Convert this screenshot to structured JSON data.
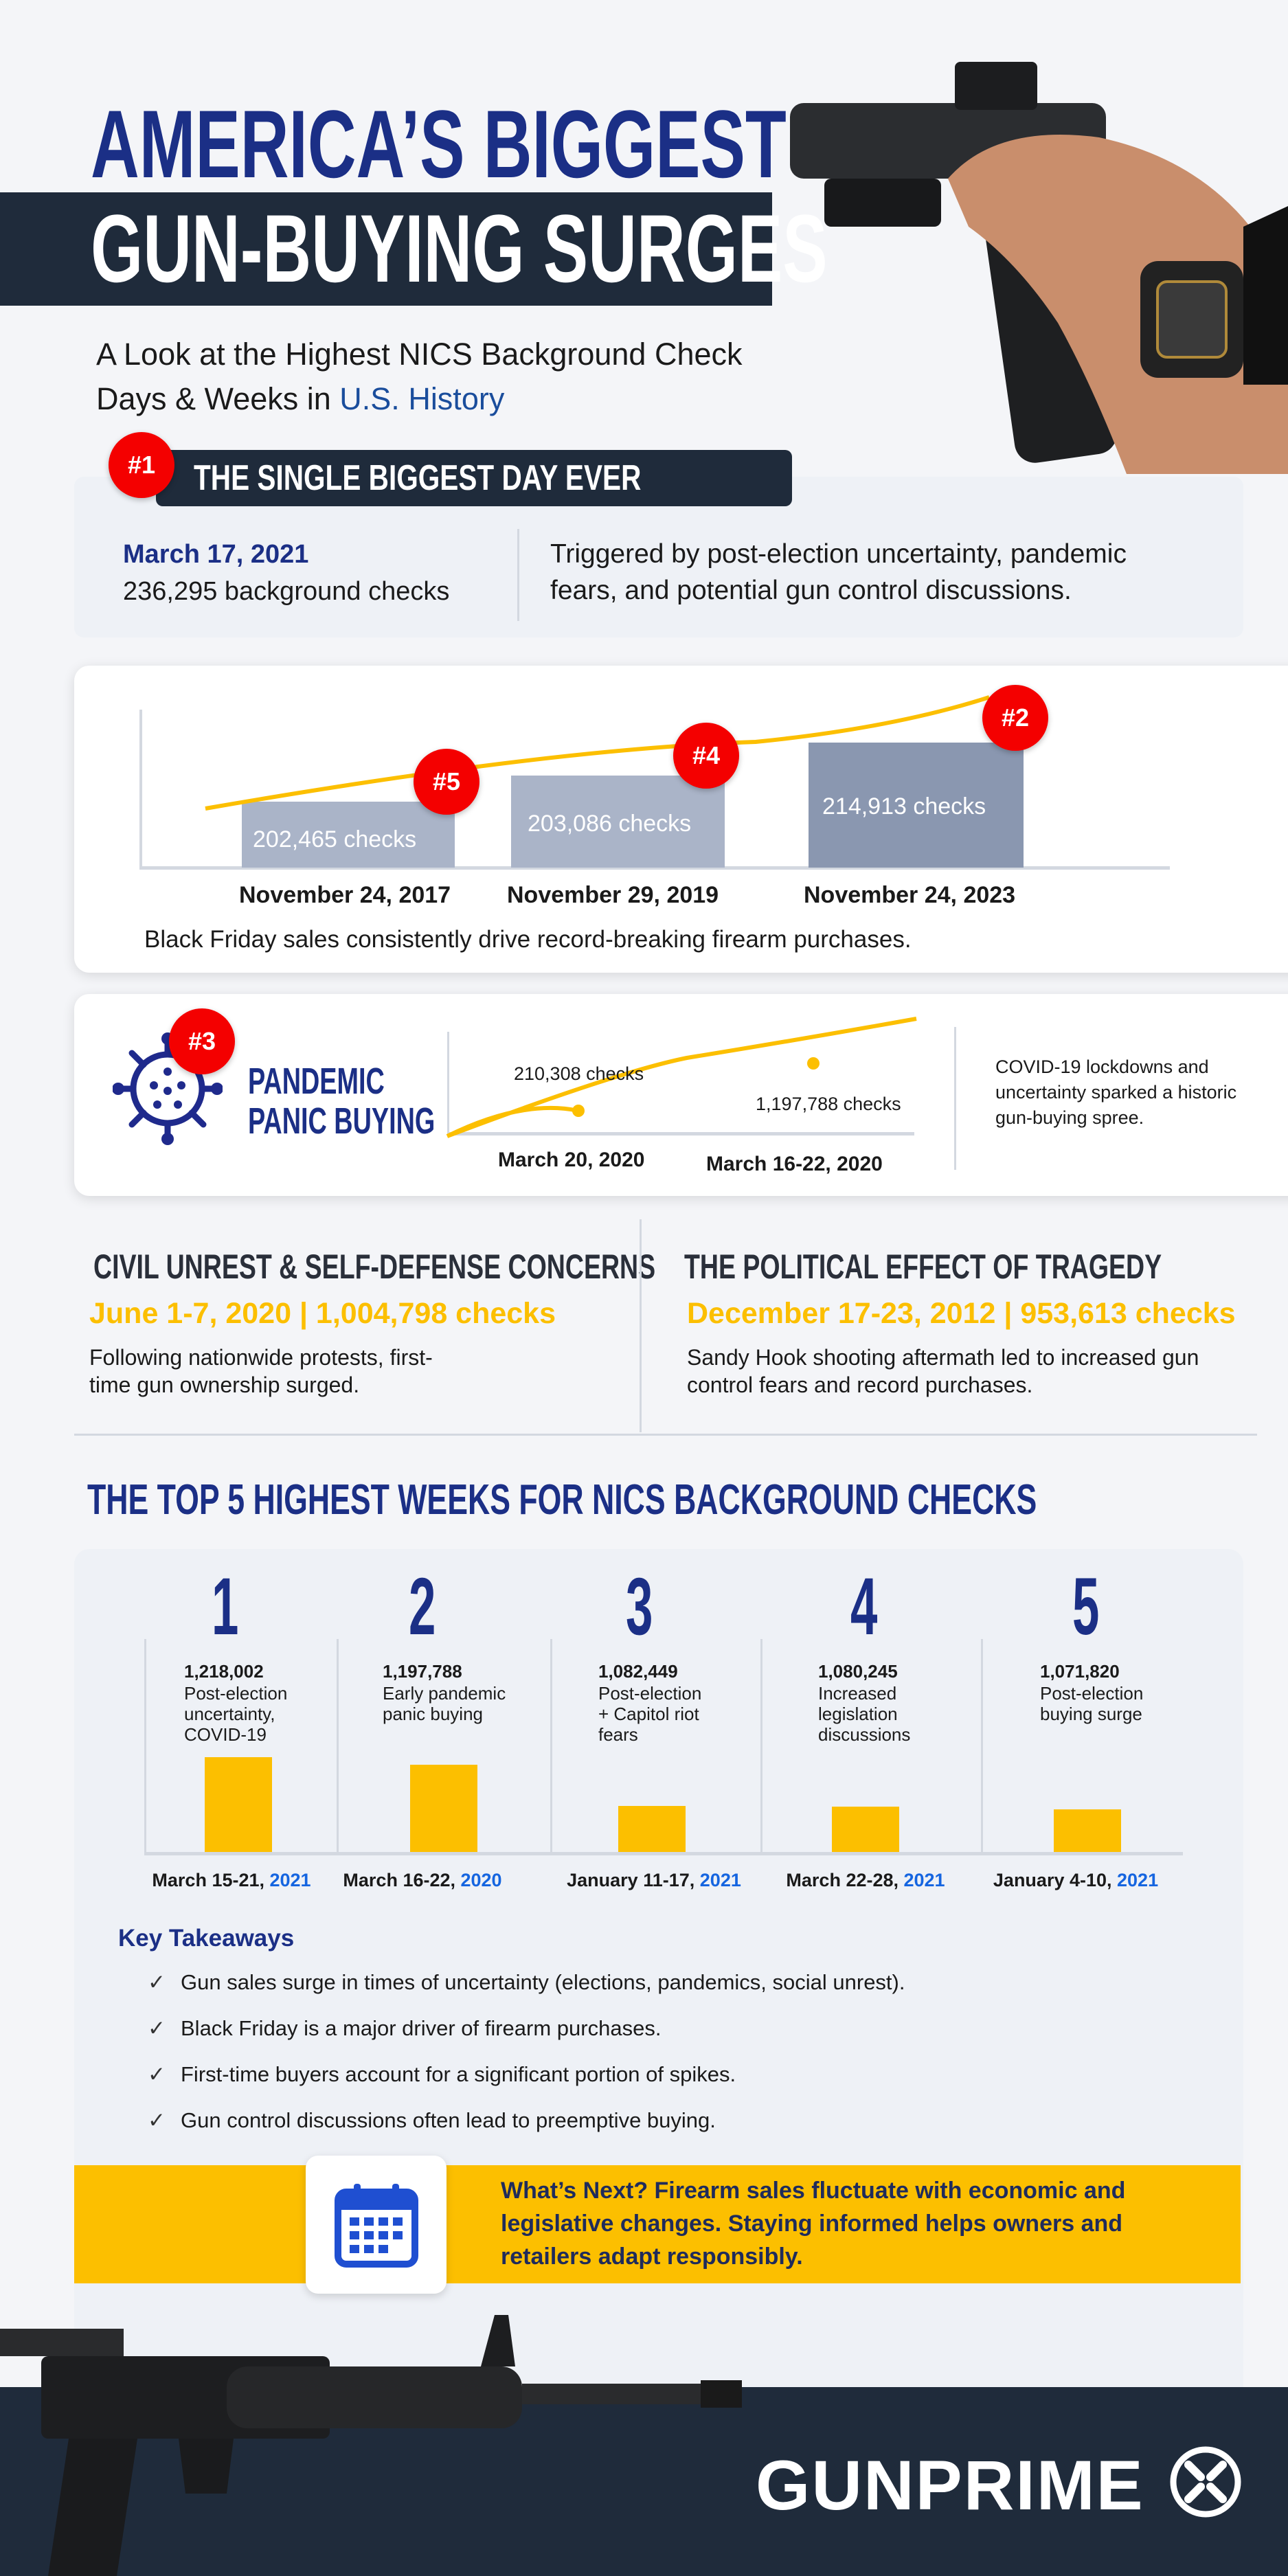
{
  "header": {
    "title_line1": "AMERICA’S BIGGEST",
    "title_line2": "GUN-BUYING SURGES",
    "subtitle_line1": "A Look at the Highest NICS Background Check",
    "subtitle_line2_prefix": "Days & Weeks in ",
    "subtitle_line2_highlight": "U.S. History"
  },
  "biggest_day": {
    "rank": "#1",
    "heading": "THE SINGLE BIGGEST DAY EVER",
    "date": "March 17, 2021",
    "checks": "236,295 background checks",
    "desc_line1": "Triggered by post-election uncertainty, pandemic",
    "desc_line2": "fears, and potential gun control discussions."
  },
  "black_friday": {
    "items": [
      {
        "rank": "#5",
        "label": "202,465  checks",
        "date": "November 24, 2017",
        "value": 202465
      },
      {
        "rank": "#4",
        "label": "203,086 checks",
        "date": "November 29, 2019",
        "value": 203086
      },
      {
        "rank": "#2",
        "label": "214,913 checks",
        "date": "November 24, 2023",
        "value": 214913
      }
    ],
    "caption": "Black Friday sales consistently drive record-breaking firearm purchases."
  },
  "pandemic": {
    "rank": "#3",
    "title_line1": "PANDEMIC",
    "title_line2": "PANIC BUYING",
    "point1_label": "210,308 checks",
    "point1_date": "March 20, 2020",
    "point2_label": "1,197,788 checks",
    "point2_date": "March 16-22, 2020",
    "desc_line1": "COVID-19 lockdowns and",
    "desc_line2": "uncertainty sparked a historic",
    "desc_line3": "gun-buying spree."
  },
  "civil_unrest": {
    "heading": "CIVIL UNREST & SELF-DEFENSE CONCERNS",
    "stat": "June 1-7, 2020 | 1,004,798 checks",
    "desc_line1": "Following nationwide protests, first-",
    "desc_line2": "time gun ownership surged."
  },
  "tragedy": {
    "heading": "THE POLITICAL EFFECT OF TRAGEDY",
    "stat": "December 17-23, 2012 | 953,613 checks",
    "desc_line1": "Sandy Hook shooting aftermath led to increased gun",
    "desc_line2": "control fears and record purchases."
  },
  "top5": {
    "heading": "THE TOP 5 HIGHEST WEEKS FOR NICS BACKGROUND CHECKS"
  },
  "chart_data": {
    "type": "bar",
    "categories": [
      "March 15-21, 2021",
      "March 16-22, 2020",
      "January 11-17, 2021",
      "March 22-28, 2021",
      "January 4-10, 2021"
    ],
    "ranks": [
      "1",
      "2",
      "3",
      "4",
      "5"
    ],
    "value_labels": [
      "1,218,002",
      "1,197,788",
      "1,082,449",
      "1,080,245",
      "1,071,820"
    ],
    "values": [
      1218002,
      1197788,
      1082449,
      1080245,
      1071820
    ],
    "descriptions": [
      [
        "Post-election",
        "uncertainty,",
        "COVID-19"
      ],
      [
        "Early pandemic",
        "panic buying"
      ],
      [
        "Post-election",
        "+ Capitol riot",
        "fears"
      ],
      [
        "Increased",
        "legislation",
        "discussions"
      ],
      [
        "Post-election",
        "buying surge"
      ]
    ],
    "date_prefix": [
      "March 15-21, ",
      "March 16-22, ",
      "January 11-17, ",
      "March 22-28, ",
      "January 4-10, "
    ],
    "date_year": [
      "2021",
      "2020",
      "2021",
      "2021",
      "2021"
    ],
    "ylim": [
      950000,
      1230000
    ],
    "bar_color": "#fcbf00"
  },
  "takeaways": {
    "heading": "Key Takeaways",
    "check": "✓",
    "items": [
      "Gun sales surge in times of uncertainty (elections, pandemics, social unrest).",
      "Black Friday is a major driver of firearm purchases.",
      "First-time buyers account for a significant portion of spikes.",
      "Gun control discussions often lead to preemptive buying."
    ]
  },
  "whats_next": {
    "line1": "What’s Next? Firearm sales fluctuate with economic and",
    "line2": "legislative changes. Staying informed helps owners and",
    "line3": "retailers adapt responsibly.",
    "icon": "calendar-icon"
  },
  "footer": {
    "logo": "GUNPRIME"
  },
  "colors": {
    "navy": "#1b2f86",
    "red": "#f40000",
    "yellow": "#fcbf00",
    "dark": "#1f2b3b",
    "panel": "#eef1f6"
  }
}
